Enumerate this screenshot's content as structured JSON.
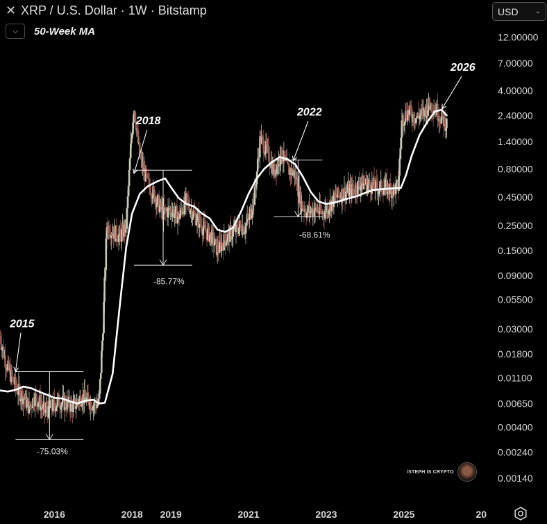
{
  "header": {
    "title": "XRP / U.S. Dollar · 1W · Bitstamp",
    "indicator_label": "50-Week MA",
    "toggle_icon": "chevron-down-icon",
    "currency": "USD"
  },
  "watermark": {
    "text": "/STEPH IS CRYPTO"
  },
  "colors": {
    "background": "#000000",
    "ma_line": "#ffffff",
    "candle_up": "#c8c8b4",
    "candle_down": "#9c5a50",
    "text": "#e0e0e0"
  },
  "chart_data": {
    "type": "line",
    "log_scale": true,
    "grid": false,
    "y_axis_position": "right",
    "y_ticks": [
      "12.00000",
      "7.00000",
      "4.00000",
      "2.40000",
      "1.40000",
      "0.80000",
      "0.45000",
      "0.25000",
      "0.15000",
      "0.09000",
      "0.05500",
      "0.03000",
      "0.01800",
      "0.01100",
      "0.00650",
      "0.00400",
      "0.00240",
      "0.00140"
    ],
    "x_ticks": [
      "2016",
      "2018",
      "2019",
      "2021",
      "2023",
      "2025",
      "20"
    ],
    "x_tick_values": [
      2016,
      2018,
      2019,
      2021,
      2023,
      2025,
      2026.99
    ],
    "x_range": [
      2014.6,
      2027.2
    ],
    "y_range": [
      0.0012,
      14.5
    ],
    "series": [
      {
        "kind": "price",
        "x": [
          2014.6,
          2014.75,
          2014.9,
          2015.05,
          2015.2,
          2015.35,
          2015.5,
          2015.6,
          2015.75,
          2015.9,
          2016.1,
          2016.3,
          2016.5,
          2016.7,
          2016.9,
          2017.0,
          2017.15,
          2017.25,
          2017.35,
          2017.5,
          2017.7,
          2017.85,
          2017.97,
          2018.05,
          2018.2,
          2018.4,
          2018.6,
          2018.8,
          2019.0,
          2019.2,
          2019.4,
          2019.55,
          2019.7,
          2019.9,
          2020.05,
          2020.2,
          2020.4,
          2020.6,
          2020.8,
          2020.9,
          2021.0,
          2021.15,
          2021.3,
          2021.5,
          2021.65,
          2021.85,
          2022.0,
          2022.2,
          2022.35,
          2022.5,
          2022.7,
          2022.9,
          2023.05,
          2023.25,
          2023.5,
          2023.7,
          2023.9,
          2024.1,
          2024.3,
          2024.5,
          2024.7,
          2024.85,
          2024.95,
          2025.1,
          2025.3,
          2025.5,
          2025.65,
          2025.8,
          2025.95,
          2026.1
        ],
        "y": [
          0.026,
          0.015,
          0.011,
          0.0085,
          0.0075,
          0.006,
          0.0075,
          0.0068,
          0.0055,
          0.0059,
          0.0068,
          0.0065,
          0.0061,
          0.0075,
          0.0068,
          0.0064,
          0.0065,
          0.03,
          0.25,
          0.22,
          0.2,
          0.25,
          1.3,
          3.0,
          1.0,
          0.6,
          0.45,
          0.32,
          0.35,
          0.3,
          0.42,
          0.33,
          0.28,
          0.22,
          0.2,
          0.15,
          0.19,
          0.22,
          0.25,
          0.24,
          0.28,
          0.45,
          1.5,
          1.1,
          0.75,
          1.1,
          0.8,
          0.72,
          0.4,
          0.33,
          0.35,
          0.32,
          0.37,
          0.45,
          0.5,
          0.52,
          0.6,
          0.58,
          0.54,
          0.55,
          0.52,
          0.55,
          2.2,
          2.6,
          2.3,
          2.5,
          3.0,
          2.8,
          2.3,
          2.0
        ]
      },
      {
        "kind": "moving-average",
        "x": [
          2014.6,
          2014.8,
          2015.0,
          2015.2,
          2015.4,
          2015.6,
          2015.8,
          2016.0,
          2016.2,
          2016.4,
          2016.6,
          2016.8,
          2017.0,
          2017.15,
          2017.3,
          2017.5,
          2017.7,
          2017.85,
          2018.0,
          2018.2,
          2018.4,
          2018.65,
          2018.85,
          2019.0,
          2019.2,
          2019.4,
          2019.6,
          2019.8,
          2020.0,
          2020.2,
          2020.4,
          2020.6,
          2020.8,
          2021.0,
          2021.2,
          2021.4,
          2021.6,
          2021.8,
          2022.0,
          2022.2,
          2022.4,
          2022.6,
          2022.8,
          2023.0,
          2023.2,
          2023.5,
          2023.8,
          2024.0,
          2024.2,
          2024.5,
          2024.8,
          2024.92,
          2025.05,
          2025.2,
          2025.4,
          2025.6,
          2025.8,
          2025.97,
          2026.1
        ],
        "y": [
          0.0085,
          0.0083,
          0.0086,
          0.0092,
          0.0089,
          0.0083,
          0.0078,
          0.0073,
          0.0072,
          0.0068,
          0.0065,
          0.0069,
          0.007,
          0.0065,
          0.0066,
          0.012,
          0.055,
          0.16,
          0.32,
          0.48,
          0.56,
          0.62,
          0.66,
          0.55,
          0.44,
          0.39,
          0.37,
          0.32,
          0.29,
          0.23,
          0.22,
          0.24,
          0.33,
          0.48,
          0.65,
          0.8,
          0.92,
          1.02,
          0.98,
          0.88,
          0.68,
          0.5,
          0.41,
          0.39,
          0.4,
          0.43,
          0.46,
          0.49,
          0.52,
          0.53,
          0.54,
          0.54,
          0.7,
          1.05,
          1.6,
          2.1,
          2.6,
          2.7,
          2.4
        ]
      }
    ],
    "annotations": [
      {
        "label": "2015",
        "arrow_x": 2015.0,
        "arrow_y": 0.0125,
        "label_x": 2014.85,
        "label_y": 0.031
      },
      {
        "label": "2018",
        "arrow_x": 2018.05,
        "arrow_y": 0.73,
        "label_x": 2018.1,
        "label_y": 2.0
      },
      {
        "label": "2022",
        "arrow_x": 2022.15,
        "arrow_y": 0.95,
        "label_x": 2022.25,
        "label_y": 2.4
      },
      {
        "label": "2026",
        "arrow_x": 2025.98,
        "arrow_y": 2.75,
        "label_x": 2026.2,
        "label_y": 6.0
      }
    ],
    "drawdowns": [
      {
        "label": "-75.03%",
        "top": 0.0125,
        "bottom": 0.0031,
        "x_left": 2015.0,
        "x_right": 2016.75,
        "label_x": 2015.55,
        "label_y": 0.0023
      },
      {
        "label": "-85.77%",
        "top": 0.78,
        "bottom": 0.111,
        "x_left": 2018.05,
        "x_right": 2019.55,
        "label_x": 2018.55,
        "label_y": 0.075
      },
      {
        "label": "-68.61%",
        "top": 0.96,
        "bottom": 0.3,
        "x_left": 2021.65,
        "x_right": 2022.9,
        "label_x": 2022.3,
        "label_y": 0.195
      }
    ]
  }
}
